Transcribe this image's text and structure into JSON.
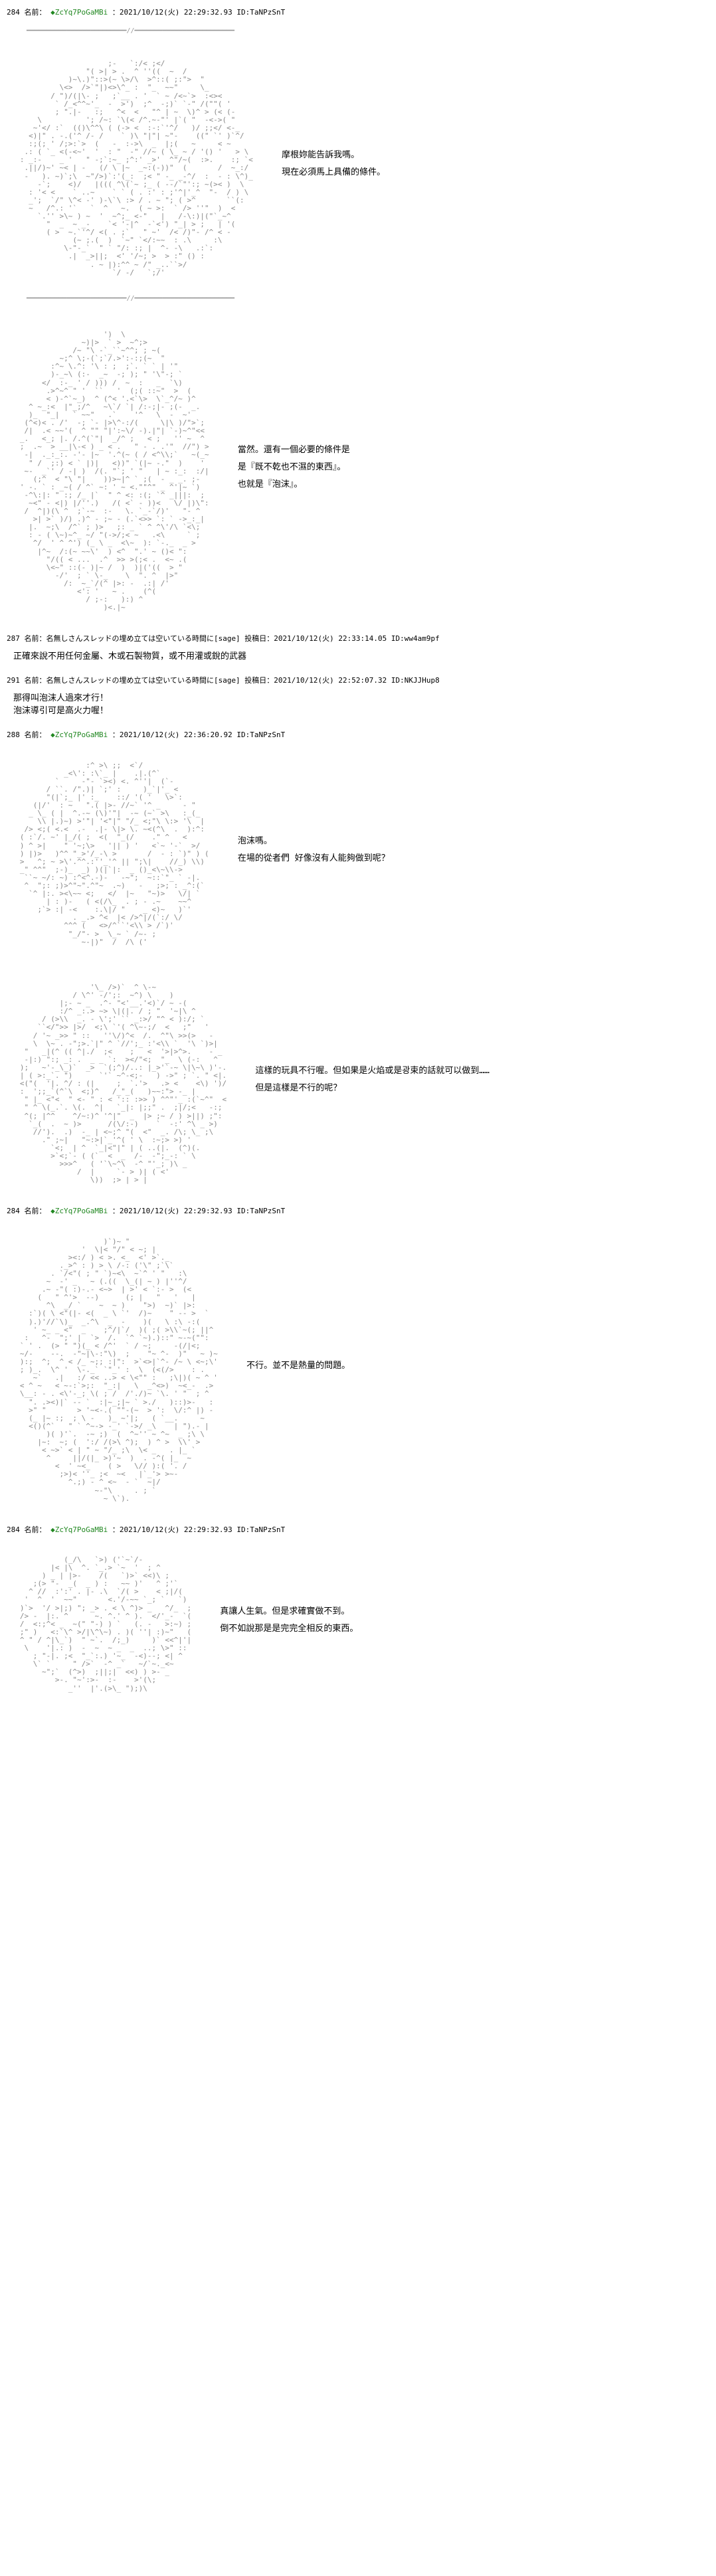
{
  "posts": [
    {
      "num": "284",
      "name_label": "名前：",
      "tripcode": "◆ZcYq7PoGaMBi",
      "meta": "：2021/10/12(火) 22:29:32.93 ID:TaNPzSnT",
      "dialogue": [
        "摩根妳能告訴我嗎。",
        "現在必須馬上具備的條件。"
      ],
      "has_divider": true,
      "aa_width": 58,
      "aa_height": 30
    },
    {
      "num": "",
      "dialogue": [
        "當然。還有一個必要的條件是",
        "是『既不乾也不濕的東西』。",
        "也就是『泡沫』。"
      ],
      "aa_width": 48,
      "aa_height": 38,
      "standalone_art": true
    },
    {
      "num": "287",
      "name_label": "名前：",
      "reply_name": "名無しさんスレッドの埋め立ては空いている時間に[sage] 投稿日：2021/10/12(火) 22:33:14.05 ID:ww4am9pf",
      "reply_text": "正確來說不用任何金屬、木或石製物質，或不用灌或銳的武器"
    },
    {
      "num": "291",
      "name_label": "名前：",
      "reply_name": "名無しさんスレッドの埋め立ては空いている時間に[sage] 投稿日：2021/10/12(火) 22:52:07.32 ID:NKJJHup8",
      "reply_text": [
        "那得叫泡沫人過來才行！",
        "泡沫導引可是高火力喔！"
      ]
    },
    {
      "num": "288",
      "name_label": "名前：",
      "tripcode": "◆ZcYq7PoGaMBi",
      "meta": "：2021/10/12(火) 22:36:20.92 ID:TaNPzSnT",
      "dialogue": [
        "泡沫嗎。",
        "在場的從者們 好像沒有人能夠做到呢？"
      ],
      "aa_width": 48,
      "aa_height": 26
    },
    {
      "num": "",
      "dialogue": [
        "這樣的玩具不行喔。但如果是火焰或是광束的話就可以做到……",
        "但是這樣是不行的呢？"
      ],
      "aa_width": 52,
      "aa_height": 28,
      "standalone_art": true
    },
    {
      "num": "284",
      "name_label": "名前：",
      "tripcode": "◆ZcYq7PoGaMBi",
      "meta": "：2021/10/12(火) 22:29:32.93 ID:TaNPzSnT",
      "dialogue": [
        "不行。並不是熱量的問題。"
      ],
      "aa_width": 50,
      "aa_height": 36
    },
    {
      "num": "284",
      "name_label": "名前：",
      "tripcode": "◆ZcYq7PoGaMBi",
      "meta": "：2021/10/12(火) 22:29:32.93 ID:TaNPzSnT",
      "dialogue": [
        "真讓人生氣。但是求確實做不到。",
        "倒不如說那是是完完全相反的東西。"
      ],
      "aa_width": 44,
      "aa_height": 20
    }
  ],
  "divider_art": "━━━━━━━━━━━━━━━━━━━━━━━━━//━━━━━━━━━━━━━━━━━━━━━━━━━"
}
